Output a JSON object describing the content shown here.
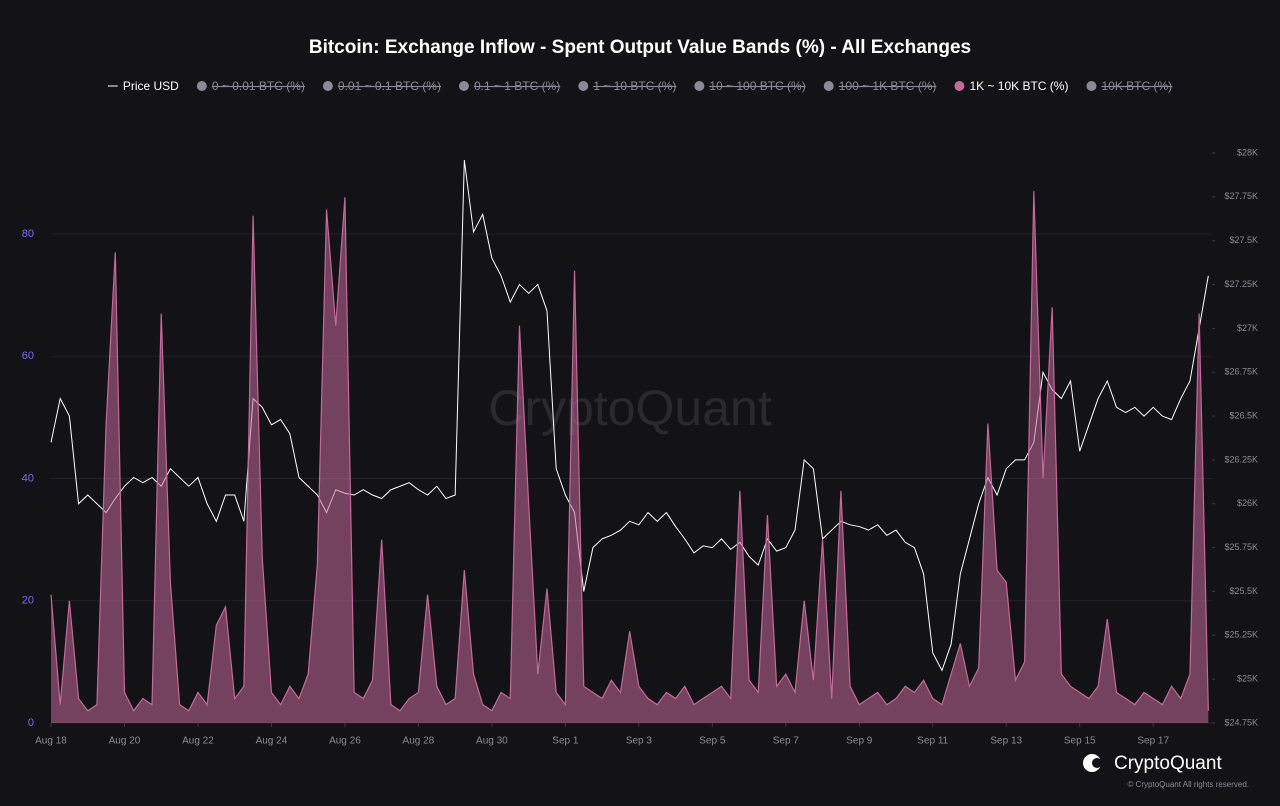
{
  "chart_data": {
    "type": "line",
    "title": "Bitcoin: Exchange Inflow - Spent Output Value Bands (%) - All Exchanges",
    "watermark": "CryptoQuant",
    "brand": "CryptoQuant",
    "copyright": "© CryptoQuant All rights reserved.",
    "xlim": [
      0,
      31.6
    ],
    "xticks": [
      {
        "value": 0,
        "label": "Aug 18"
      },
      {
        "value": 2,
        "label": "Aug 20"
      },
      {
        "value": 4,
        "label": "Aug 22"
      },
      {
        "value": 6,
        "label": "Aug 24"
      },
      {
        "value": 8,
        "label": "Aug 26"
      },
      {
        "value": 10,
        "label": "Aug 28"
      },
      {
        "value": 12,
        "label": "Aug 30"
      },
      {
        "value": 14,
        "label": "Sep 1"
      },
      {
        "value": 16,
        "label": "Sep 3"
      },
      {
        "value": 18,
        "label": "Sep 5"
      },
      {
        "value": 20,
        "label": "Sep 7"
      },
      {
        "value": 22,
        "label": "Sep 9"
      },
      {
        "value": 24,
        "label": "Sep 11"
      },
      {
        "value": 26,
        "label": "Sep 13"
      },
      {
        "value": 28,
        "label": "Sep 15"
      },
      {
        "value": 30,
        "label": "Sep 17"
      }
    ],
    "ylim": [
      0,
      93.25
    ],
    "yticks": [
      0,
      20,
      40,
      60,
      80
    ],
    "y2lim": [
      24750,
      28000
    ],
    "y2ticks": [
      {
        "value": 24750,
        "label": "$24.75K"
      },
      {
        "value": 25000,
        "label": "$25K"
      },
      {
        "value": 25250,
        "label": "$25.25K"
      },
      {
        "value": 25500,
        "label": "$25.5K"
      },
      {
        "value": 25750,
        "label": "$25.75K"
      },
      {
        "value": 26000,
        "label": "$26K"
      },
      {
        "value": 26250,
        "label": "$26.25K"
      },
      {
        "value": 26500,
        "label": "$26.5K"
      },
      {
        "value": 26750,
        "label": "$26.75K"
      },
      {
        "value": 27000,
        "label": "$27K"
      },
      {
        "value": 27250,
        "label": "$27.25K"
      },
      {
        "value": 27500,
        "label": "$27.5K"
      },
      {
        "value": 27750,
        "label": "$27.75K"
      },
      {
        "value": 28000,
        "label": "$28K"
      }
    ],
    "grid": true,
    "x": [
      0,
      0.25,
      0.5,
      0.75,
      1,
      1.25,
      1.5,
      1.75,
      2,
      2.25,
      2.5,
      2.75,
      3,
      3.25,
      3.5,
      3.75,
      4,
      4.25,
      4.5,
      4.75,
      5,
      5.25,
      5.5,
      5.75,
      6,
      6.25,
      6.5,
      6.75,
      7,
      7.25,
      7.5,
      7.75,
      8,
      8.25,
      8.5,
      8.75,
      9,
      9.25,
      9.5,
      9.75,
      10,
      10.25,
      10.5,
      10.75,
      11,
      11.25,
      11.5,
      11.75,
      12,
      12.25,
      12.5,
      12.75,
      13,
      13.25,
      13.5,
      13.75,
      14,
      14.25,
      14.5,
      14.75,
      15,
      15.25,
      15.5,
      15.75,
      16,
      16.25,
      16.5,
      16.75,
      17,
      17.25,
      17.5,
      17.75,
      18,
      18.25,
      18.5,
      18.75,
      19,
      19.25,
      19.5,
      19.75,
      20,
      20.25,
      20.5,
      20.75,
      21,
      21.25,
      21.5,
      21.75,
      22,
      22.25,
      22.5,
      22.75,
      23,
      23.25,
      23.5,
      23.75,
      24,
      24.25,
      24.5,
      24.75,
      25,
      25.25,
      25.5,
      25.75,
      26,
      26.25,
      26.5,
      26.75,
      27,
      27.25,
      27.5,
      27.75,
      28,
      28.25,
      28.5,
      28.75,
      29,
      29.25,
      29.5,
      29.75,
      30,
      30.25,
      30.5,
      30.75,
      31,
      31.25,
      31.5
    ],
    "series": [
      {
        "name": "Price USD",
        "type": "line",
        "axis": "y2",
        "color": "#ffffff",
        "values": [
          26350,
          26600,
          26500,
          26000,
          26050,
          26000,
          25950,
          26030,
          26100,
          26150,
          26120,
          26150,
          26100,
          26200,
          26150,
          26100,
          26150,
          26000,
          25900,
          26050,
          26050,
          25900,
          26600,
          26550,
          26450,
          26480,
          26400,
          26150,
          26100,
          26050,
          25950,
          26080,
          26060,
          26050,
          26080,
          26050,
          26030,
          26080,
          26100,
          26120,
          26080,
          26050,
          26100,
          26030,
          26050,
          27960,
          27550,
          27650,
          27400,
          27300,
          27150,
          27250,
          27200,
          27250,
          27100,
          26200,
          26050,
          25950,
          25500,
          25750,
          25800,
          25820,
          25850,
          25900,
          25880,
          25950,
          25900,
          25950,
          25870,
          25800,
          25720,
          25760,
          25750,
          25800,
          25740,
          25780,
          25700,
          25650,
          25800,
          25730,
          25750,
          25850,
          26250,
          26200,
          25800,
          25850,
          25900,
          25880,
          25870,
          25850,
          25880,
          25820,
          25850,
          25780,
          25750,
          25600,
          25150,
          25050,
          25200,
          25600,
          25800,
          26000,
          26150,
          26050,
          26200,
          26250,
          26250,
          26350,
          26750,
          26650,
          26600,
          26700,
          26300,
          26450,
          26600,
          26700,
          26550,
          26520,
          26550,
          26500,
          26550,
          26500,
          26480,
          26600,
          26700,
          27000,
          27300
        ]
      },
      {
        "name": "0 ~ 0.01 BTC (%)",
        "hidden": true,
        "color": "#8a8a94"
      },
      {
        "name": "0.01 ~ 0.1 BTC (%)",
        "hidden": true,
        "color": "#8a8a94"
      },
      {
        "name": "0.1 ~ 1 BTC (%)",
        "hidden": true,
        "color": "#8a8a94"
      },
      {
        "name": "1 ~ 10 BTC (%)",
        "hidden": true,
        "color": "#8a8a94"
      },
      {
        "name": "10 ~ 100 BTC (%)",
        "hidden": true,
        "color": "#8a8a94"
      },
      {
        "name": "100 ~ 1K BTC (%)",
        "hidden": true,
        "color": "#8a8a94"
      },
      {
        "name": "1K ~ 10K BTC (%)",
        "type": "area",
        "axis": "y",
        "color": "#c4699a",
        "values": [
          21,
          3,
          20,
          4,
          2,
          3,
          49,
          77,
          5,
          2,
          4,
          3,
          67,
          23,
          3,
          2,
          5,
          3,
          16,
          19,
          4,
          6,
          83,
          27,
          5,
          3,
          6,
          4,
          8,
          26,
          84,
          65,
          86,
          5,
          4,
          7,
          30,
          3,
          2,
          4,
          5,
          21,
          6,
          3,
          4,
          25,
          8,
          3,
          2,
          5,
          4,
          65,
          36,
          8,
          22,
          5,
          3,
          74,
          6,
          5,
          4,
          7,
          5,
          15,
          6,
          4,
          3,
          5,
          4,
          6,
          3,
          4,
          5,
          6,
          4,
          38,
          7,
          5,
          34,
          6,
          8,
          5,
          20,
          7,
          30,
          4,
          38,
          6,
          3,
          4,
          5,
          3,
          4,
          6,
          5,
          7,
          4,
          3,
          8,
          13,
          6,
          9,
          49,
          25,
          23,
          7,
          10,
          87,
          40,
          68,
          8,
          6,
          5,
          4,
          6,
          17,
          5,
          4,
          3,
          5,
          4,
          3,
          6,
          4,
          8,
          67,
          2
        ]
      },
      {
        "name": "10K BTC (%)",
        "hidden": true,
        "color": "#8a8a94"
      }
    ]
  }
}
